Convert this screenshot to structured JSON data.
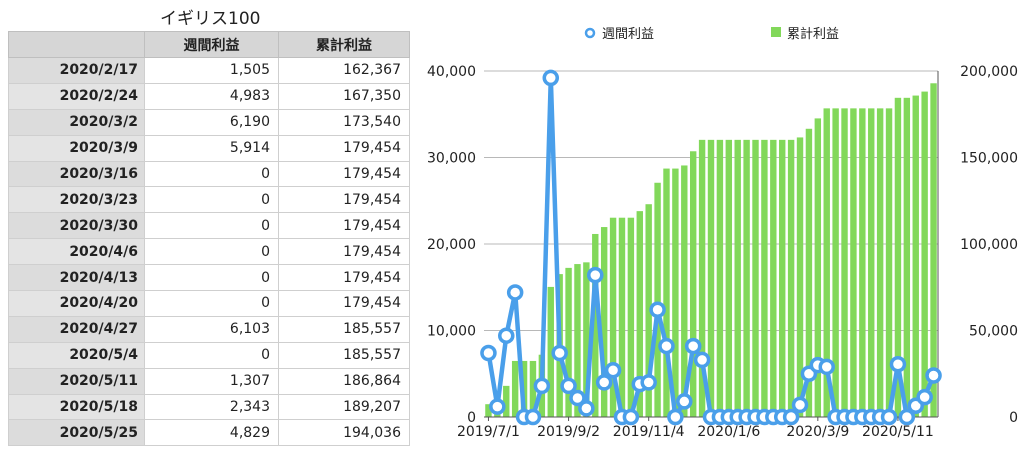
{
  "table": {
    "title": "イギリス100",
    "headers": [
      "",
      "週間利益",
      "累計利益"
    ],
    "rows": [
      [
        "2020/2/17",
        "1,505",
        "162,367"
      ],
      [
        "2020/2/24",
        "4,983",
        "167,350"
      ],
      [
        "2020/3/2",
        "6,190",
        "173,540"
      ],
      [
        "2020/3/9",
        "5,914",
        "179,454"
      ],
      [
        "2020/3/16",
        "0",
        "179,454"
      ],
      [
        "2020/3/23",
        "0",
        "179,454"
      ],
      [
        "2020/3/30",
        "0",
        "179,454"
      ],
      [
        "2020/4/6",
        "0",
        "179,454"
      ],
      [
        "2020/4/13",
        "0",
        "179,454"
      ],
      [
        "2020/4/20",
        "0",
        "179,454"
      ],
      [
        "2020/4/27",
        "6,103",
        "185,557"
      ],
      [
        "2020/5/4",
        "0",
        "185,557"
      ],
      [
        "2020/5/11",
        "1,307",
        "186,864"
      ],
      [
        "2020/5/18",
        "2,343",
        "189,207"
      ],
      [
        "2020/5/25",
        "4,829",
        "194,036"
      ]
    ]
  },
  "chart_data": {
    "type": "bar+line",
    "legend": [
      {
        "name": "週間利益",
        "kind": "line",
        "color": "#4a9fea"
      },
      {
        "name": "累計利益",
        "kind": "bar",
        "color": "#82d85a"
      }
    ],
    "legend_position": "top",
    "x_tick_labels": [
      "2019/7/1",
      "2019/9/2",
      "2019/11/4",
      "2020/1/6",
      "2020/3/9",
      "2020/5/11"
    ],
    "x_tick_indices": [
      0,
      9,
      18,
      27,
      37,
      46
    ],
    "y_left": {
      "ticks": [
        "0",
        "10,000",
        "20,000",
        "30,000",
        "40,000"
      ],
      "range": [
        0,
        40000
      ]
    },
    "y_right": {
      "ticks": [
        "0",
        "50,000",
        "100,000",
        "150,000",
        "200,000"
      ],
      "range": [
        0,
        200000
      ]
    },
    "grid": true,
    "series": [
      {
        "name": "週間利益",
        "axis": "left",
        "values": [
          7400,
          1200,
          9400,
          14400,
          0,
          0,
          3600,
          39200,
          7400,
          3600,
          2200,
          1000,
          16400,
          4000,
          5400,
          0,
          0,
          3800,
          4000,
          12400,
          8200,
          0,
          1800,
          8200,
          6600,
          0,
          0,
          0,
          0,
          0,
          0,
          0,
          0,
          0,
          0,
          1400,
          5000,
          6000,
          5800,
          0,
          0,
          0,
          0,
          0,
          0,
          0,
          6100,
          0,
          1300,
          2300,
          4800
        ]
      },
      {
        "name": "累計利益",
        "axis": "right",
        "values": [
          7400,
          8600,
          18000,
          32400,
          32400,
          32400,
          36000,
          75200,
          82600,
          86200,
          88400,
          89400,
          105800,
          109800,
          115200,
          115200,
          115200,
          119000,
          123000,
          135400,
          143600,
          143600,
          145400,
          153600,
          160200,
          160200,
          160200,
          160200,
          160200,
          160200,
          160200,
          160200,
          160200,
          160200,
          160200,
          161600,
          166600,
          172600,
          178400,
          178400,
          178400,
          178400,
          178400,
          178400,
          178400,
          178400,
          184500,
          184500,
          185800,
          188100,
          192900
        ]
      }
    ]
  }
}
